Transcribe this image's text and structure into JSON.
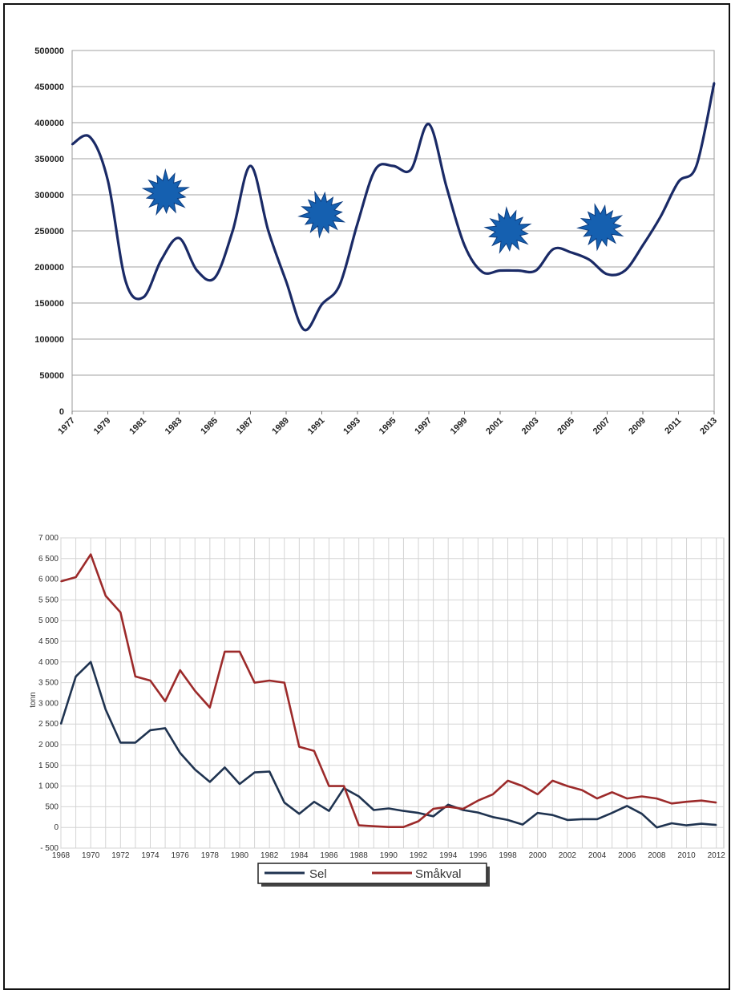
{
  "chart_data": [
    {
      "type": "line",
      "title": "",
      "xlabel": "",
      "ylabel": "",
      "ylim": [
        0,
        500000
      ],
      "yticks": [
        0,
        50000,
        100000,
        150000,
        200000,
        250000,
        300000,
        350000,
        400000,
        450000,
        500000
      ],
      "xtick_labels": [
        "1977",
        "1979",
        "1981",
        "1983",
        "1985",
        "1987",
        "1989",
        "1991",
        "1993",
        "1995",
        "1997",
        "1999",
        "2001",
        "2003",
        "2005",
        "2007",
        "2009",
        "2011",
        "2013"
      ],
      "grid": "horizontal",
      "series": [
        {
          "color": "#1a2a66",
          "x": [
            1977,
            1978,
            1979,
            1980,
            1981,
            1982,
            1983,
            1984,
            1985,
            1986,
            1987,
            1988,
            1989,
            1990,
            1991,
            1992,
            1993,
            1994,
            1995,
            1996,
            1997,
            1998,
            1999,
            2000,
            2001,
            2002,
            2003,
            2004,
            2005,
            2006,
            2007,
            2008,
            2009,
            2010,
            2011,
            2012,
            2013
          ],
          "values": [
            370000,
            380000,
            320000,
            180000,
            158000,
            210000,
            240000,
            195000,
            185000,
            250000,
            340000,
            250000,
            180000,
            113000,
            148000,
            175000,
            260000,
            335000,
            340000,
            335000,
            398000,
            310000,
            230000,
            193000,
            195000,
            195000,
            195000,
            225000,
            220000,
            210000,
            190000,
            195000,
            230000,
            270000,
            318000,
            340000,
            455000
          ]
        }
      ],
      "icons": [
        "starburst-icon",
        "starburst-icon",
        "starburst-icon",
        "starburst-icon"
      ]
    },
    {
      "type": "line",
      "title": "",
      "xlabel": "",
      "ylabel": "tonn",
      "ylim": [
        -500,
        7000
      ],
      "ytick_labels": [
        "7 000",
        "6 500",
        "6 000",
        "5 500",
        "5 000",
        "4 500",
        "4 000",
        "3 500",
        "3 000",
        "2 500",
        "2 000",
        "1 500",
        "1 000",
        "500",
        "0",
        "- 500"
      ],
      "yticks": [
        7000,
        6500,
        6000,
        5500,
        5000,
        4500,
        4000,
        3500,
        3000,
        2500,
        2000,
        1500,
        1000,
        500,
        0,
        -500
      ],
      "xtick_labels": [
        "1968",
        "1970",
        "1972",
        "1974",
        "1976",
        "1978",
        "1980",
        "1982",
        "1984",
        "1986",
        "1988",
        "1990",
        "1992",
        "1994",
        "1996",
        "1998",
        "2000",
        "2002",
        "2004",
        "2006",
        "2008",
        "2010",
        "2012"
      ],
      "x_range": [
        1968,
        2012.5
      ],
      "grid": "both",
      "legend": "bottom-center",
      "series": [
        {
          "name": "Sel",
          "color": "#1f3350",
          "x": [
            1968,
            1969,
            1970,
            1971,
            1972,
            1973,
            1974,
            1975,
            1976,
            1977,
            1978,
            1979,
            1980,
            1981,
            1982,
            1983,
            1984,
            1985,
            1986,
            1987,
            1988,
            1989,
            1990,
            1991,
            1992,
            1993,
            1994,
            1995,
            1996,
            1997,
            1998,
            1999,
            2000,
            2001,
            2002,
            2003,
            2004,
            2005,
            2006,
            2007,
            2008,
            2009,
            2010,
            2011,
            2012
          ],
          "values": [
            2500,
            3650,
            4000,
            2850,
            2050,
            2050,
            2350,
            2400,
            1800,
            1400,
            1100,
            1450,
            1050,
            1330,
            1350,
            600,
            330,
            620,
            400,
            950,
            750,
            420,
            460,
            400,
            350,
            270,
            550,
            420,
            360,
            250,
            180,
            70,
            350,
            300,
            180,
            200,
            200,
            350,
            520,
            330,
            0,
            100,
            50,
            90,
            60
          ]
        },
        {
          "name": "Småkval",
          "color": "#9c2a2a",
          "x": [
            1968,
            1969,
            1970,
            1971,
            1972,
            1973,
            1974,
            1975,
            1976,
            1977,
            1978,
            1979,
            1980,
            1981,
            1982,
            1983,
            1984,
            1985,
            1986,
            1987,
            1988,
            1989,
            1990,
            1991,
            1992,
            1993,
            1994,
            1995,
            1996,
            1997,
            1998,
            1999,
            2000,
            2001,
            2002,
            2003,
            2004,
            2005,
            2006,
            2007,
            2008,
            2009,
            2010,
            2011,
            2012
          ],
          "values": [
            5950,
            6050,
            6600,
            5600,
            5200,
            3650,
            3550,
            3050,
            3800,
            3300,
            2900,
            4250,
            4250,
            3500,
            3550,
            3500,
            1950,
            1850,
            1000,
            1000,
            50,
            30,
            10,
            10,
            150,
            450,
            500,
            450,
            650,
            800,
            1130,
            1000,
            800,
            1130,
            1000,
            900,
            700,
            850,
            700,
            750,
            700,
            580,
            620,
            650,
            600
          ]
        }
      ]
    }
  ]
}
